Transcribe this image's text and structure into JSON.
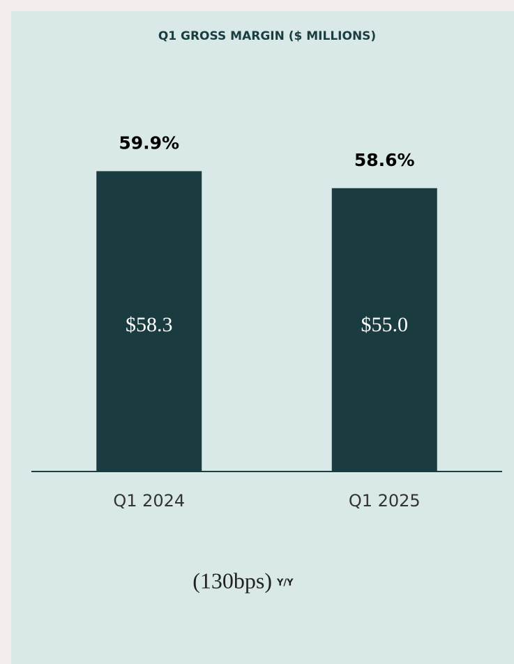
{
  "chart_data": {
    "type": "bar",
    "title": "Q1 GROSS MARGIN ($ MILLIONS)",
    "categories": [
      "Q1 2024",
      "Q1 2025"
    ],
    "values": [
      58.3,
      55.0
    ],
    "value_labels": [
      "$58.3",
      "$55.0"
    ],
    "margin_values": [
      59.9,
      58.6
    ],
    "margin_labels": [
      "59.9%",
      "58.6%"
    ],
    "color": "#1a3c40",
    "ylim": [
      0,
      70
    ],
    "annotation": "(130bps)",
    "annotation_suffix": "Y/Y"
  }
}
